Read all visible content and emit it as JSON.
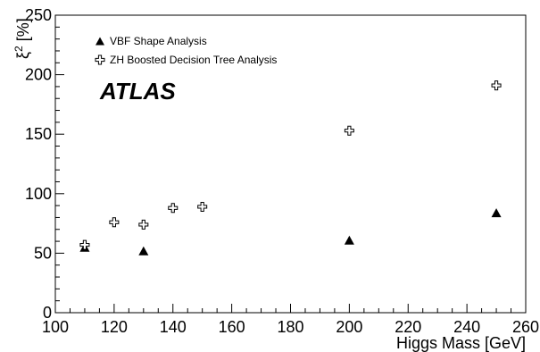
{
  "chart_data": {
    "type": "scatter",
    "xlabel": "Higgs Mass [GeV]",
    "ylabel_main": "ξ",
    "ylabel_sup": "2",
    "ylabel_unit": " [%]",
    "annotation": "ATLAS",
    "xlim": [
      100,
      260
    ],
    "ylim": [
      0,
      250
    ],
    "xticks": [
      100,
      120,
      140,
      160,
      180,
      200,
      220,
      240,
      260
    ],
    "yticks": [
      0,
      50,
      100,
      150,
      200,
      250
    ],
    "grid": false,
    "legend_position": "top-left",
    "series": [
      {
        "name": "VBF Shape Analysis",
        "marker": "filled-triangle",
        "x": [
          110,
          130,
          200,
          250
        ],
        "y": [
          55,
          52,
          61,
          84
        ]
      },
      {
        "name": "ZH Boosted Decision Tree Analysis",
        "marker": "open-cross",
        "x": [
          110,
          120,
          130,
          140,
          150,
          200,
          250
        ],
        "y": [
          57,
          76,
          74,
          88,
          89,
          153,
          191
        ]
      }
    ]
  }
}
